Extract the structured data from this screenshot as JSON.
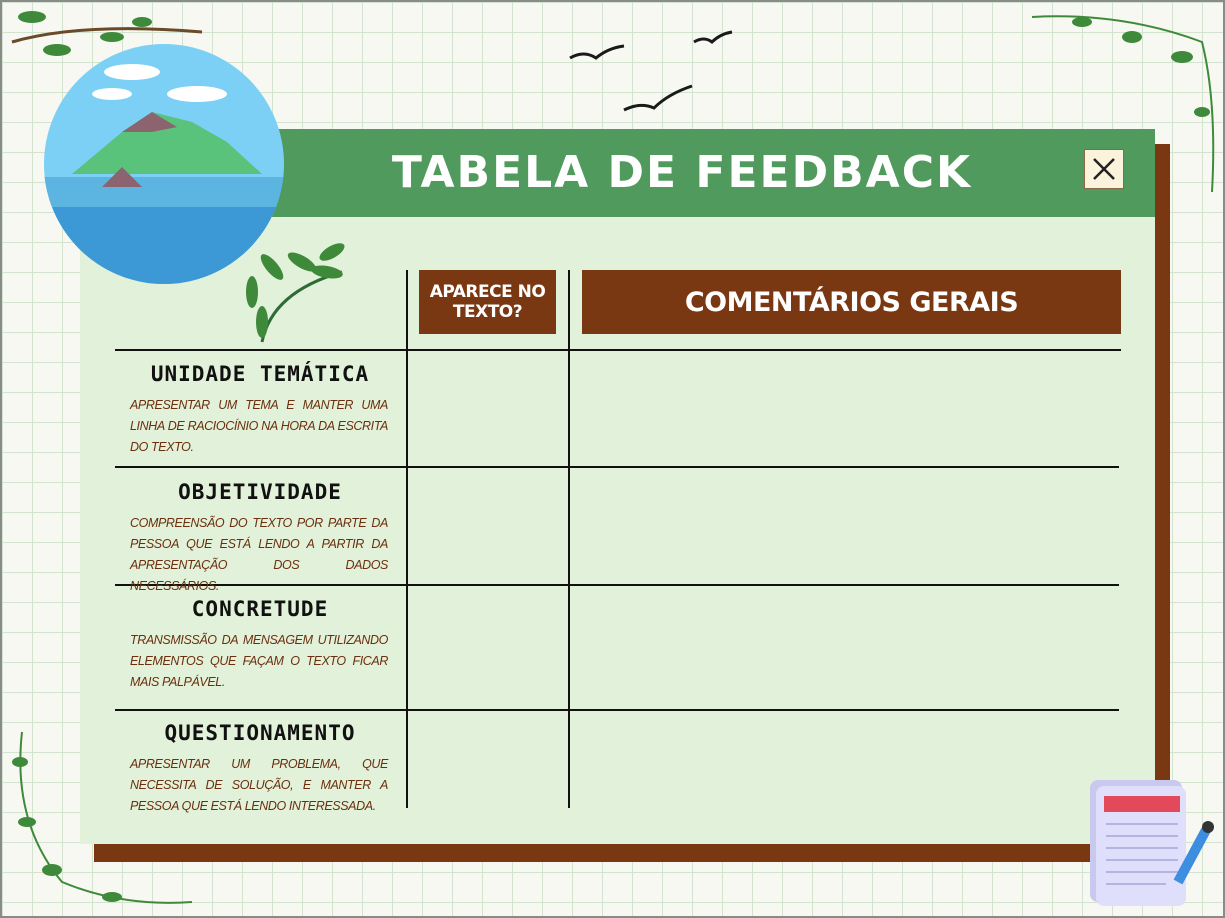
{
  "header": {
    "title": "TABELA DE FEEDBACK"
  },
  "table": {
    "headers": [
      "APARECE NO TEXTO?",
      "COMENTÁRIOS GERAIS"
    ],
    "rows": [
      {
        "title": "UNIDADE TEMÁTICA",
        "description": "APRESENTAR UM TEMA E MANTER UMA LINHA DE RACIOCÍNIO NA HORA DA ESCRITA DO TEXTO."
      },
      {
        "title": "OBJETIVIDADE",
        "description": "COMPREENSÃO DO TEXTO POR PARTE DA PESSOA QUE ESTÁ LENDO A PARTIR DA APRESENTAÇÃO DOS DADOS NECESSÁRIOS."
      },
      {
        "title": "CONCRETUDE",
        "description": "TRANSMISSÃO DA MENSAGEM UTILIZANDO ELEMENTOS QUE FAÇAM O TEXTO FICAR MAIS PALPÁVEL."
      },
      {
        "title": "QUESTIONAMENTO",
        "description": "APRESENTAR UM PROBLEMA, QUE NECESSITA DE SOLUÇÃO, E MANTER A PESSOA QUE ESTÁ LENDO INTERESSADA."
      }
    ]
  }
}
